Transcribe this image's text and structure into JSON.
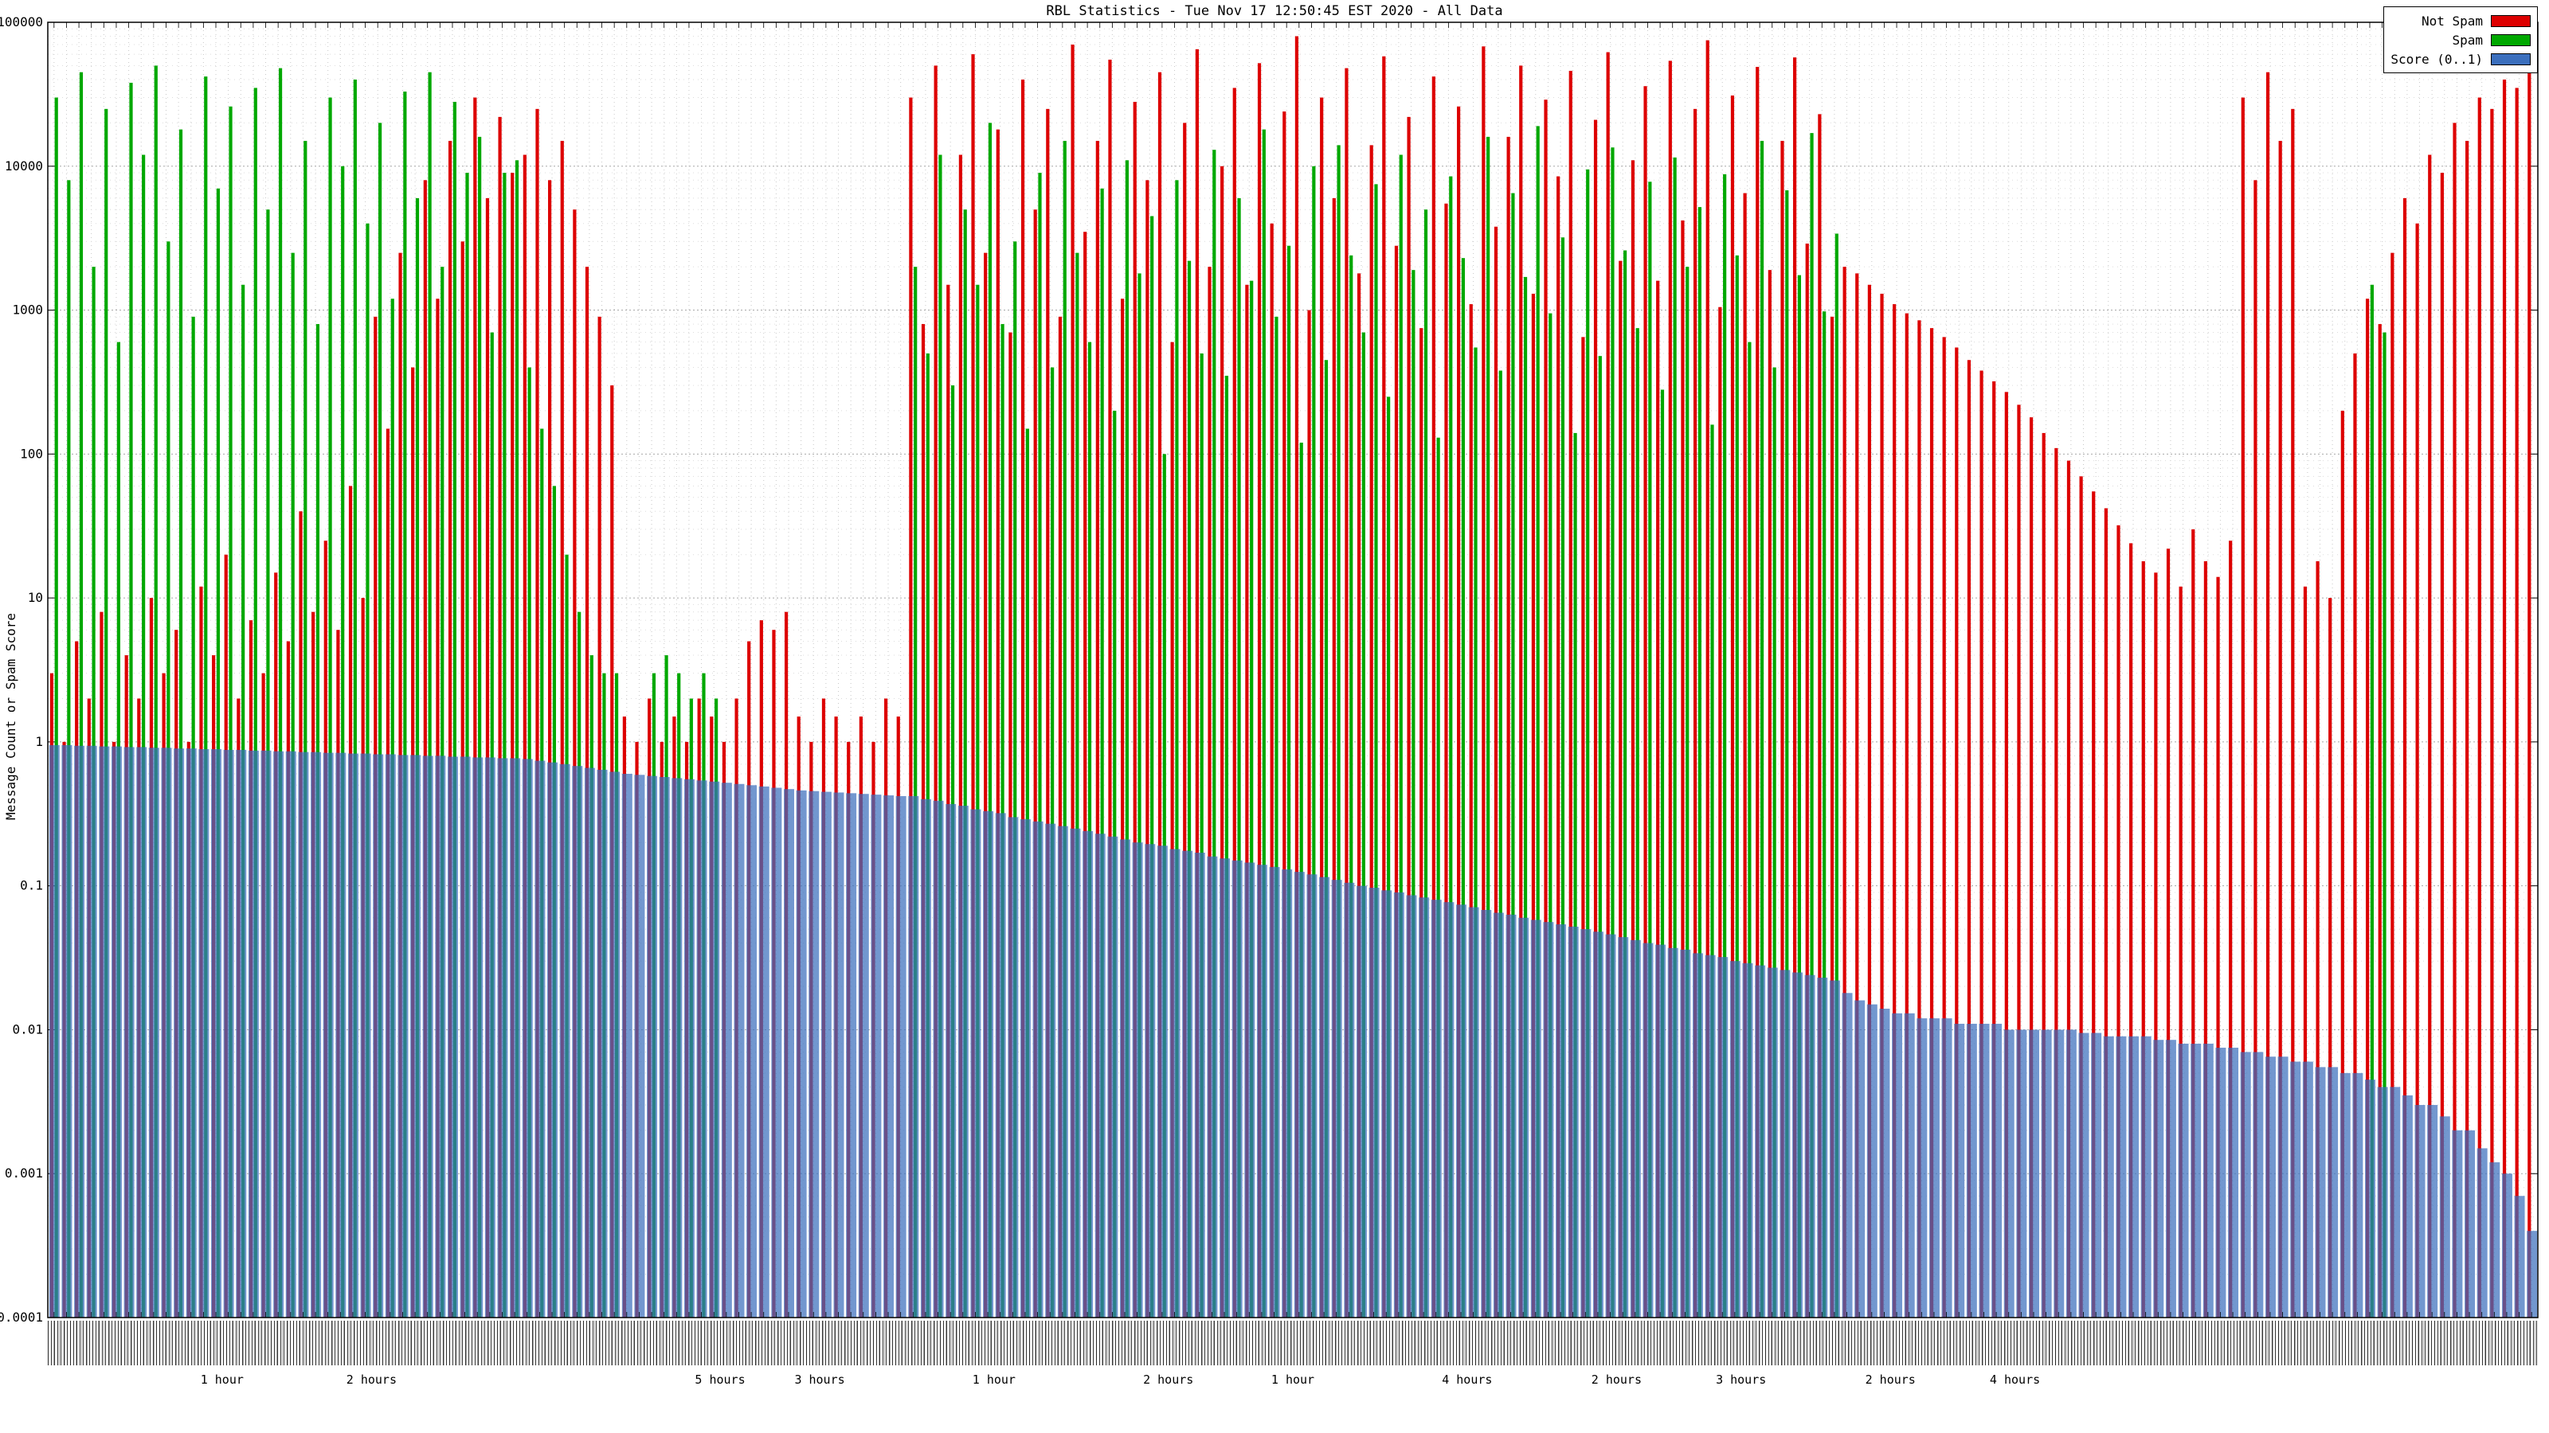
{
  "chart_data": {
    "type": "bar",
    "title": "RBL Statistics - Tue Nov 17 12:50:45 EST 2020 - All Data",
    "xlabel": "",
    "ylabel": "Message Count or Spam Score",
    "y_scale": "log",
    "ylim": [
      0.0001,
      100000
    ],
    "y_ticks": [
      "100000",
      "10000",
      "1000",
      "100",
      "10",
      "1",
      "0.1",
      "0.01",
      "0.001",
      "0.0001"
    ],
    "grid": true,
    "legend_position": "top-right",
    "x_tick_labels_illegible": true,
    "x_annotations": [
      {
        "label": "1 hour",
        "pos": 0.07
      },
      {
        "label": "2 hours",
        "pos": 0.13
      },
      {
        "label": "5 hours",
        "pos": 0.27
      },
      {
        "label": "3 hours",
        "pos": 0.31
      },
      {
        "label": "1 hour",
        "pos": 0.38
      },
      {
        "label": "2 hours",
        "pos": 0.45
      },
      {
        "label": "1 hour",
        "pos": 0.5
      },
      {
        "label": "4 hours",
        "pos": 0.57
      },
      {
        "label": "2 hours",
        "pos": 0.63
      },
      {
        "label": "3 hours",
        "pos": 0.68
      },
      {
        "label": "2 hours",
        "pos": 0.74
      },
      {
        "label": "4 hours",
        "pos": 0.79
      }
    ],
    "series": [
      {
        "name": "Not Spam",
        "color": "#dd0000",
        "values": [
          3,
          1,
          5,
          2,
          8,
          1,
          4,
          2,
          10,
          3,
          6,
          1,
          12,
          4,
          20,
          2,
          7,
          3,
          15,
          5,
          40,
          8,
          25,
          6,
          60,
          10,
          900,
          150,
          2500,
          400,
          8000,
          1200,
          15000,
          3000,
          30000,
          6000,
          22000,
          9000,
          12000,
          25000,
          8000,
          15000,
          5000,
          2000,
          900,
          300,
          1.5,
          1,
          2,
          1,
          1.5,
          1,
          2,
          1.5,
          1,
          2,
          5,
          7,
          6,
          8,
          1.5,
          1,
          2,
          1.5,
          1,
          1.5,
          1,
          2,
          1.5,
          30000,
          800,
          50000,
          1500,
          12000,
          60000,
          2500,
          18000,
          700,
          40000,
          5000,
          25000,
          900,
          70000,
          3500,
          15000,
          55000,
          1200,
          28000,
          8000,
          45000,
          600,
          20000,
          65000,
          2000,
          10000,
          35000,
          1500,
          52000,
          4000,
          24000,
          80000,
          1000,
          30000,
          6000,
          48000,
          1800,
          14000,
          58000,
          2800,
          22000,
          750,
          42000,
          5500,
          26000,
          1100,
          68000,
          3800,
          16000,
          50000,
          1300,
          29000,
          8500,
          46000,
          650,
          21000,
          62000,
          2200,
          11000,
          36000,
          1600,
          54000,
          4200,
          25000,
          75000,
          1050,
          31000,
          6500,
          49000,
          1900,
          15000,
          57000,
          2900,
          23000,
          900,
          2000,
          1800,
          1500,
          1300,
          1100,
          950,
          850,
          750,
          650,
          550,
          450,
          380,
          320,
          270,
          220,
          180,
          140,
          110,
          90,
          70,
          55,
          42,
          32,
          24,
          18,
          15,
          22,
          12,
          30,
          18,
          14,
          25,
          30000,
          8000,
          45000,
          15000,
          25000,
          12,
          18,
          10,
          200,
          500,
          1200,
          800,
          2500,
          6000,
          4000,
          12000,
          9000,
          20000,
          15000,
          30000,
          25000,
          40000,
          35000,
          50000
        ]
      },
      {
        "name": "Spam",
        "color": "#00a800",
        "values": [
          30000,
          8000,
          45000,
          2000,
          25000,
          600,
          38000,
          12000,
          50000,
          3000,
          18000,
          900,
          42000,
          7000,
          26000,
          1500,
          35000,
          5000,
          48000,
          2500,
          15000,
          800,
          30000,
          10000,
          40000,
          4000,
          20000,
          1200,
          33000,
          6000,
          45000,
          2000,
          28000,
          9000,
          16000,
          700,
          9000,
          11000,
          400,
          150,
          60,
          20,
          8,
          4,
          3,
          3,
          0,
          0,
          3,
          4,
          3,
          2,
          3,
          2,
          0,
          0,
          0,
          0,
          0,
          0,
          0,
          0,
          0,
          0,
          0,
          0,
          0,
          0,
          0,
          2000,
          500,
          12000,
          300,
          5000,
          1500,
          20000,
          800,
          3000,
          150,
          9000,
          400,
          15000,
          2500,
          600,
          7000,
          200,
          11000,
          1800,
          4500,
          100,
          8000,
          2200,
          500,
          13000,
          350,
          6000,
          1600,
          18000,
          900,
          2800,
          120,
          10000,
          450,
          14000,
          2400,
          700,
          7500,
          250,
          12000,
          1900,
          5000,
          130,
          8500,
          2300,
          550,
          16000,
          380,
          6500,
          1700,
          19000,
          950,
          3200,
          140,
          9500,
          480,
          13500,
          2600,
          750,
          7800,
          280,
          11500,
          2000,
          5200,
          160,
          8800,
          2400,
          600,
          15000,
          400,
          6800,
          1750,
          17000,
          980,
          3400,
          0,
          0,
          0,
          0,
          0,
          0,
          0,
          0,
          0,
          0,
          0,
          0,
          0,
          0,
          0,
          0,
          0,
          0,
          0,
          0,
          0,
          0,
          0,
          0,
          0,
          0,
          0,
          0,
          0,
          0,
          0,
          0,
          0,
          0,
          0,
          0,
          0,
          0,
          0,
          0,
          0,
          0,
          1500,
          700,
          0,
          0,
          0,
          0,
          0,
          0,
          0,
          0,
          0,
          0,
          0,
          0
        ]
      },
      {
        "name": "Score (0..1)",
        "color": "#3b6fbd",
        "values": [
          0.95,
          0.95,
          0.94,
          0.94,
          0.93,
          0.93,
          0.92,
          0.92,
          0.91,
          0.91,
          0.9,
          0.9,
          0.89,
          0.89,
          0.88,
          0.88,
          0.87,
          0.87,
          0.86,
          0.86,
          0.85,
          0.85,
          0.84,
          0.84,
          0.83,
          0.83,
          0.82,
          0.82,
          0.81,
          0.81,
          0.8,
          0.8,
          0.79,
          0.79,
          0.78,
          0.78,
          0.77,
          0.77,
          0.76,
          0.74,
          0.72,
          0.7,
          0.68,
          0.66,
          0.64,
          0.62,
          0.6,
          0.59,
          0.58,
          0.57,
          0.56,
          0.55,
          0.54,
          0.53,
          0.52,
          0.51,
          0.5,
          0.49,
          0.48,
          0.47,
          0.46,
          0.455,
          0.45,
          0.445,
          0.44,
          0.435,
          0.43,
          0.425,
          0.42,
          0.42,
          0.4,
          0.39,
          0.37,
          0.36,
          0.34,
          0.33,
          0.32,
          0.3,
          0.29,
          0.28,
          0.27,
          0.26,
          0.25,
          0.24,
          0.23,
          0.22,
          0.21,
          0.2,
          0.195,
          0.19,
          0.18,
          0.175,
          0.17,
          0.16,
          0.155,
          0.15,
          0.145,
          0.14,
          0.135,
          0.13,
          0.125,
          0.12,
          0.115,
          0.11,
          0.105,
          0.1,
          0.097,
          0.093,
          0.09,
          0.086,
          0.083,
          0.08,
          0.077,
          0.074,
          0.071,
          0.068,
          0.065,
          0.063,
          0.06,
          0.058,
          0.056,
          0.054,
          0.052,
          0.05,
          0.048,
          0.046,
          0.044,
          0.042,
          0.04,
          0.039,
          0.037,
          0.036,
          0.034,
          0.033,
          0.032,
          0.03,
          0.029,
          0.028,
          0.027,
          0.026,
          0.025,
          0.024,
          0.023,
          0.022,
          0.018,
          0.016,
          0.015,
          0.014,
          0.013,
          0.013,
          0.012,
          0.012,
          0.012,
          0.011,
          0.011,
          0.011,
          0.011,
          0.01,
          0.01,
          0.01,
          0.01,
          0.01,
          0.01,
          0.0095,
          0.0095,
          0.009,
          0.009,
          0.009,
          0.009,
          0.0085,
          0.0085,
          0.008,
          0.008,
          0.008,
          0.0075,
          0.0075,
          0.007,
          0.007,
          0.0065,
          0.0065,
          0.006,
          0.006,
          0.0055,
          0.0055,
          0.005,
          0.005,
          0.0045,
          0.004,
          0.004,
          0.0035,
          0.003,
          0.003,
          0.0025,
          0.002,
          0.002,
          0.0015,
          0.0012,
          0.001,
          0.0007,
          0.0004
        ]
      }
    ]
  }
}
